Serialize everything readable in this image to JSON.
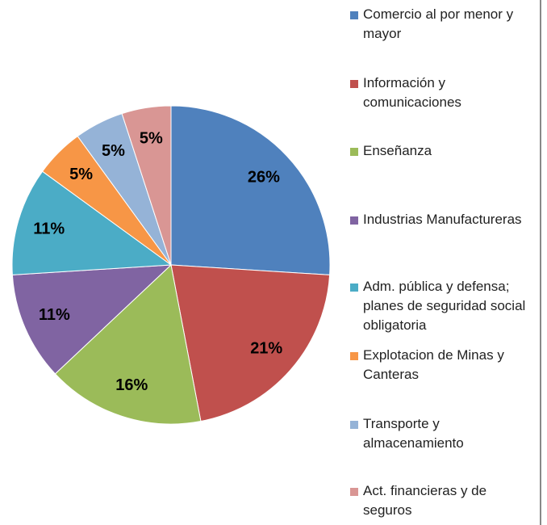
{
  "chart_data": {
    "type": "pie",
    "categories": [
      "Comercio al por menor y mayor",
      "Información y comunicaciones",
      "Enseñanza",
      "Industrias Manufactureras",
      "Adm. pública y defensa; planes de seguridad social obligatoria",
      "Explotacion de Minas y Canteras",
      "Transporte y almacenamiento",
      "Act. financieras y de seguros"
    ],
    "values": [
      26,
      21,
      16,
      11,
      11,
      5,
      5,
      5
    ],
    "value_labels": [
      "26%",
      "21%",
      "16%",
      "11%",
      "11%",
      "5%",
      "5%",
      "5%"
    ],
    "colors": [
      "#4f81bd",
      "#c0504d",
      "#9bbb59",
      "#8064a2",
      "#4bacc6",
      "#f79646",
      "#95b3d7",
      "#d99694"
    ],
    "legend": "right"
  }
}
